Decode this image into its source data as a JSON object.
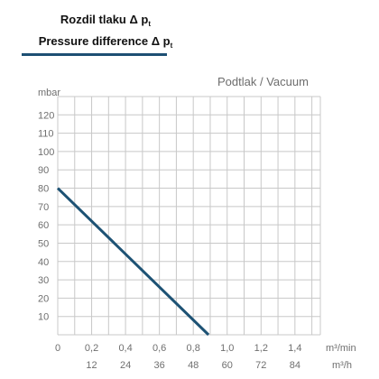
{
  "header": {
    "title_cz": "Rozdil tlaku Δ p",
    "title_cz_sub": "t",
    "title_en": "Pressure difference Δ p",
    "title_en_sub": "t"
  },
  "chart_data": {
    "type": "line",
    "subtitle": "Podtlak / Vacuum",
    "ylabel": "mbar",
    "xlabel": "m³/min",
    "xlabel2": "m³/h",
    "ylim": [
      0,
      130
    ],
    "xlim": [
      0,
      1.55
    ],
    "yticks": [
      "10",
      "20",
      "30",
      "40",
      "50",
      "60",
      "70",
      "80",
      "90",
      "100",
      "110",
      "120"
    ],
    "xticks": [
      "0",
      "0,2",
      "0,4",
      "0,6",
      "0,8",
      "1,0",
      "1,2",
      "1,4"
    ],
    "xticks2": [
      "12",
      "24",
      "36",
      "48",
      "60",
      "72",
      "84"
    ],
    "grid": true,
    "series": [
      {
        "x": [
          0,
          0.89
        ],
        "y": [
          80,
          0
        ],
        "color": "#1d5274"
      }
    ]
  }
}
